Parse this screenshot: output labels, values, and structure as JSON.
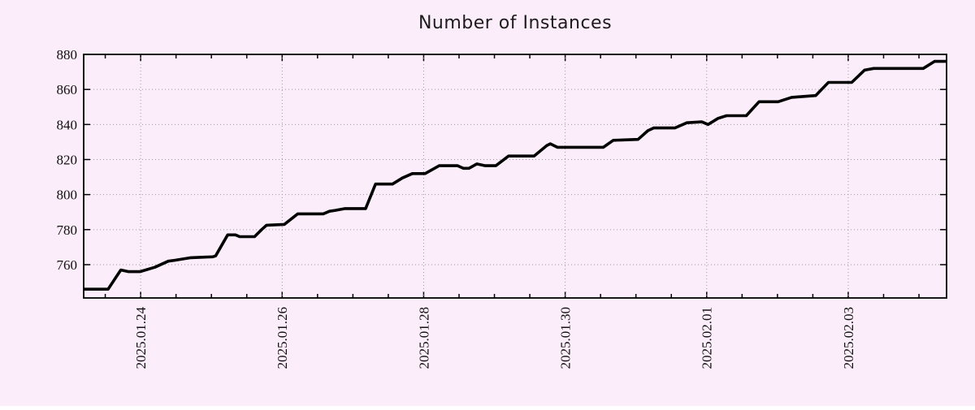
{
  "colors": {
    "background": "#fbeefa",
    "line": "#000000",
    "grid": "#9a9a9a",
    "frame": "#000000",
    "text": "#111111"
  },
  "chart_data": {
    "type": "line",
    "title": "Number of Instances",
    "xlabel": "",
    "ylabel": "",
    "legend": "none",
    "grid": "dotted, at major ticks only",
    "x_axis": {
      "unit": "decimal days since 2025-01-23 00:00",
      "range": [
        0.195,
        12.39
      ],
      "minor_tick_step": 0.5,
      "major_ticks": [
        {
          "day": 1,
          "label": "2025.01.24"
        },
        {
          "day": 3,
          "label": "2025.01.26"
        },
        {
          "day": 5,
          "label": "2025.01.28"
        },
        {
          "day": 7,
          "label": "2025.01.30"
        },
        {
          "day": 9,
          "label": "2025.02.01"
        },
        {
          "day": 11,
          "label": "2025.02.03"
        }
      ]
    },
    "y_axis": {
      "range": [
        741,
        880
      ],
      "ticks": [
        760,
        780,
        800,
        820,
        840,
        860,
        880
      ]
    },
    "series": [
      {
        "name": "instances",
        "color": "#000000",
        "points": [
          [
            0.2,
            746
          ],
          [
            0.54,
            746
          ],
          [
            0.72,
            757
          ],
          [
            0.83,
            756
          ],
          [
            0.99,
            756
          ],
          [
            1.2,
            758.5
          ],
          [
            1.39,
            762
          ],
          [
            1.48,
            762.5
          ],
          [
            1.71,
            764
          ],
          [
            2.02,
            764.5
          ],
          [
            2.06,
            765
          ],
          [
            2.23,
            777
          ],
          [
            2.34,
            777
          ],
          [
            2.4,
            776
          ],
          [
            2.61,
            776
          ],
          [
            2.71,
            780
          ],
          [
            2.78,
            782.5
          ],
          [
            3.03,
            783
          ],
          [
            3.22,
            789
          ],
          [
            3.58,
            789
          ],
          [
            3.67,
            790.5
          ],
          [
            3.75,
            791
          ],
          [
            3.89,
            792
          ],
          [
            4.18,
            792
          ],
          [
            4.32,
            806
          ],
          [
            4.56,
            806
          ],
          [
            4.7,
            809.5
          ],
          [
            4.84,
            812
          ],
          [
            5.02,
            812
          ],
          [
            5.22,
            816.5
          ],
          [
            5.48,
            816.5
          ],
          [
            5.56,
            815
          ],
          [
            5.64,
            815
          ],
          [
            5.75,
            817.5
          ],
          [
            5.87,
            816.5
          ],
          [
            6.02,
            816.5
          ],
          [
            6.2,
            822
          ],
          [
            6.56,
            822
          ],
          [
            6.74,
            828
          ],
          [
            6.79,
            829
          ],
          [
            6.89,
            827
          ],
          [
            7.54,
            827
          ],
          [
            7.68,
            831
          ],
          [
            8.03,
            831.5
          ],
          [
            8.17,
            836.5
          ],
          [
            8.25,
            838
          ],
          [
            8.55,
            838
          ],
          [
            8.72,
            841
          ],
          [
            8.93,
            841.5
          ],
          [
            9.02,
            840
          ],
          [
            9.16,
            843.5
          ],
          [
            9.28,
            845
          ],
          [
            9.56,
            845
          ],
          [
            9.74,
            853
          ],
          [
            10.01,
            853
          ],
          [
            10.2,
            855.5
          ],
          [
            10.54,
            856.5
          ],
          [
            10.72,
            864
          ],
          [
            11.05,
            864
          ],
          [
            11.23,
            871
          ],
          [
            11.36,
            872
          ],
          [
            12.06,
            872
          ],
          [
            12.22,
            876
          ],
          [
            12.39,
            876
          ]
        ]
      }
    ]
  }
}
